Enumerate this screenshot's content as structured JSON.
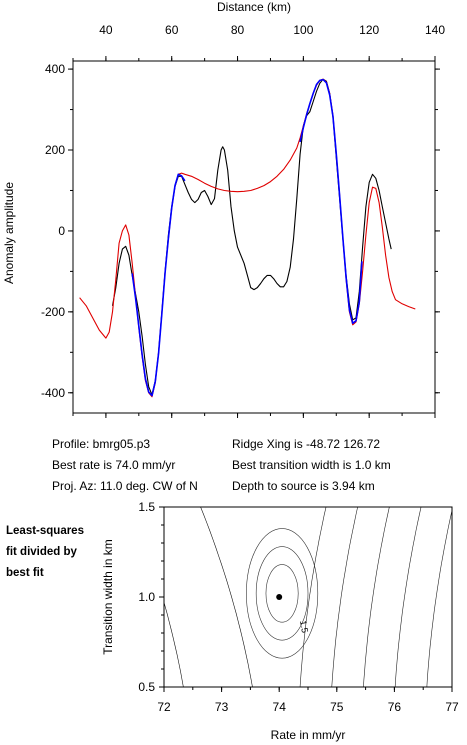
{
  "info": {
    "profile": "Profile: bmrg05.p3",
    "best_rate": "Best rate is 74.0 mm/yr",
    "proj_az": "Proj. Az: 11.0 deg. CW of N",
    "ridge_xing": "Ridge Xing is -48.72 126.72",
    "best_transition": "Best transition width is 1.0 km",
    "depth": "Depth to source is   3.94 km"
  },
  "note": [
    "Least-squares",
    "fit divided by",
    "best fit"
  ],
  "chart_data": [
    {
      "type": "line",
      "xlabel": "Distance (km)",
      "ylabel": "Anomaly amplitude",
      "xlim": [
        30,
        140
      ],
      "ylim": [
        -450,
        420
      ],
      "x_ticks": [
        40,
        60,
        80,
        100,
        120,
        140
      ],
      "y_ticks": [
        -400,
        -200,
        0,
        200,
        400
      ],
      "x_axis_position": "top",
      "series": [
        {
          "name": "",
          "color": "#000000",
          "points": [
            [
              42,
              -185
            ],
            [
              43,
              -140
            ],
            [
              44,
              -80
            ],
            [
              45,
              -45
            ],
            [
              46,
              -38
            ],
            [
              47,
              -60
            ],
            [
              48,
              -110
            ],
            [
              50,
              -200
            ],
            [
              51,
              -260
            ],
            [
              52,
              -330
            ],
            [
              53,
              -385
            ],
            [
              54,
              -405
            ],
            [
              55,
              -370
            ],
            [
              56,
              -300
            ],
            [
              57,
              -200
            ],
            [
              58,
              -100
            ],
            [
              59,
              -10
            ],
            [
              60,
              60
            ],
            [
              61,
              110
            ],
            [
              62,
              135
            ],
            [
              63,
              135
            ],
            [
              64,
              115
            ],
            [
              65,
              95
            ],
            [
              66,
              78
            ],
            [
              67,
              70
            ],
            [
              68,
              78
            ],
            [
              69,
              95
            ],
            [
              70,
              100
            ],
            [
              71,
              85
            ],
            [
              72,
              65
            ],
            [
              73,
              80
            ],
            [
              74,
              150
            ],
            [
              75,
              200
            ],
            [
              75.5,
              208
            ],
            [
              76,
              200
            ],
            [
              77,
              150
            ],
            [
              78,
              60
            ],
            [
              79,
              0
            ],
            [
              80,
              -40
            ],
            [
              81,
              -60
            ],
            [
              82,
              -80
            ],
            [
              83,
              -110
            ],
            [
              84,
              -140
            ],
            [
              85,
              -145
            ],
            [
              86,
              -140
            ],
            [
              87,
              -130
            ],
            [
              88,
              -118
            ],
            [
              89,
              -110
            ],
            [
              90,
              -110
            ],
            [
              91,
              -118
            ],
            [
              92,
              -130
            ],
            [
              93,
              -138
            ],
            [
              94,
              -138
            ],
            [
              95,
              -125
            ],
            [
              96,
              -90
            ],
            [
              97,
              -20
            ],
            [
              98,
              80
            ],
            [
              99,
              190
            ],
            [
              100,
              260
            ],
            [
              101,
              285
            ],
            [
              102,
              295
            ],
            [
              103,
              320
            ],
            [
              104,
              345
            ],
            [
              105,
              365
            ],
            [
              106,
              375
            ],
            [
              107,
              370
            ],
            [
              108,
              340
            ],
            [
              109,
              280
            ],
            [
              110,
              180
            ],
            [
              111,
              80
            ],
            [
              112,
              -20
            ],
            [
              113,
              -110
            ],
            [
              114,
              -180
            ],
            [
              115,
              -220
            ],
            [
              116,
              -215
            ],
            [
              117,
              -150
            ],
            [
              118,
              -40
            ],
            [
              119,
              60
            ],
            [
              120,
              120
            ],
            [
              121,
              140
            ],
            [
              122,
              130
            ],
            [
              123,
              100
            ],
            [
              124,
              60
            ],
            [
              125,
              20
            ],
            [
              126,
              -20
            ],
            [
              126.7,
              -45
            ]
          ]
        },
        {
          "name": "",
          "color": "#e00000",
          "points": [
            [
              32,
              -165
            ],
            [
              34,
              -185
            ],
            [
              36,
              -215
            ],
            [
              38,
              -245
            ],
            [
              40,
              -265
            ],
            [
              41,
              -250
            ],
            [
              42,
              -200
            ],
            [
              43,
              -120
            ],
            [
              44,
              -30
            ],
            [
              45,
              0
            ],
            [
              46,
              15
            ],
            [
              47,
              -10
            ],
            [
              48,
              -80
            ],
            [
              49,
              -160
            ],
            [
              50,
              -240
            ],
            [
              51,
              -310
            ],
            [
              52,
              -370
            ],
            [
              53,
              -400
            ],
            [
              54,
              -410
            ],
            [
              55,
              -375
            ],
            [
              56,
              -300
            ],
            [
              57,
              -200
            ],
            [
              58,
              -100
            ],
            [
              59,
              -20
            ],
            [
              60,
              55
            ],
            [
              61,
              110
            ],
            [
              62,
              140
            ],
            [
              63,
              143
            ],
            [
              64,
              140
            ],
            [
              66,
              135
            ],
            [
              68,
              127
            ],
            [
              70,
              118
            ],
            [
              72,
              110
            ],
            [
              74,
              104
            ],
            [
              76,
              100
            ],
            [
              78,
              98
            ],
            [
              80,
              97
            ],
            [
              82,
              98
            ],
            [
              84,
              100
            ],
            [
              86,
              105
            ],
            [
              88,
              112
            ],
            [
              90,
              122
            ],
            [
              92,
              135
            ],
            [
              94,
              152
            ],
            [
              96,
              175
            ],
            [
              98,
              205
            ],
            [
              99,
              230
            ],
            [
              100,
              260
            ],
            [
              101,
              290
            ],
            [
              102,
              315
            ],
            [
              103,
              340
            ],
            [
              104,
              360
            ],
            [
              105,
              372
            ],
            [
              106,
              375
            ],
            [
              107,
              368
            ],
            [
              108,
              340
            ],
            [
              109,
              285
            ],
            [
              110,
              190
            ],
            [
              111,
              90
            ],
            [
              112,
              -20
            ],
            [
              113,
              -120
            ],
            [
              114,
              -200
            ],
            [
              115,
              -232
            ],
            [
              116,
              -225
            ],
            [
              117,
              -180
            ],
            [
              118,
              -100
            ],
            [
              119,
              -10
            ],
            [
              120,
              70
            ],
            [
              121,
              108
            ],
            [
              122,
              105
            ],
            [
              123,
              70
            ],
            [
              124,
              10
            ],
            [
              125,
              -60
            ],
            [
              126,
              -115
            ],
            [
              127,
              -150
            ],
            [
              128,
              -170
            ],
            [
              130,
              -180
            ],
            [
              132,
              -187
            ],
            [
              134,
              -193
            ]
          ]
        },
        {
          "name": "",
          "color": "#0000ff",
          "points": [
            [
              48,
              -105
            ],
            [
              49,
              -165
            ],
            [
              50,
              -235
            ],
            [
              51,
              -305
            ],
            [
              52,
              -365
            ],
            [
              53,
              -398
            ],
            [
              54,
              -407
            ],
            [
              55,
              -372
            ],
            [
              56,
              -302
            ],
            [
              57,
              -203
            ],
            [
              58,
              -103
            ],
            [
              59,
              -18
            ],
            [
              60,
              57
            ],
            [
              61,
              112
            ],
            [
              62,
              140
            ],
            [
              63,
              136
            ],
            [
              64,
              124
            ]
          ]
        },
        {
          "name": "",
          "color": "#0000ff",
          "points": [
            [
              99,
              220
            ],
            [
              100,
              256
            ],
            [
              101,
              288
            ],
            [
              102,
              315
            ],
            [
              103,
              340
            ],
            [
              104,
              362
            ],
            [
              105,
              372
            ],
            [
              106,
              374
            ],
            [
              107,
              366
            ],
            [
              108,
              336
            ],
            [
              109,
              282
            ],
            [
              110,
              190
            ],
            [
              111,
              88
            ],
            [
              112,
              -18
            ],
            [
              113,
              -115
            ],
            [
              114,
              -195
            ],
            [
              115,
              -228
            ],
            [
              116,
              -222
            ],
            [
              117,
              -175
            ],
            [
              117.8,
              -75
            ]
          ]
        }
      ]
    },
    {
      "type": "contour",
      "xlabel": "Rate in mm/yr",
      "ylabel": "Transition width in km",
      "xlim": [
        72,
        77
      ],
      "ylim": [
        0.5,
        1.5
      ],
      "x_ticks": [
        72,
        73,
        74,
        75,
        76,
        77
      ],
      "y_ticks": [
        0.5,
        1.0,
        1.5
      ],
      "contour_label": "1.5",
      "best_fit_point": [
        74.0,
        1.0
      ]
    }
  ]
}
